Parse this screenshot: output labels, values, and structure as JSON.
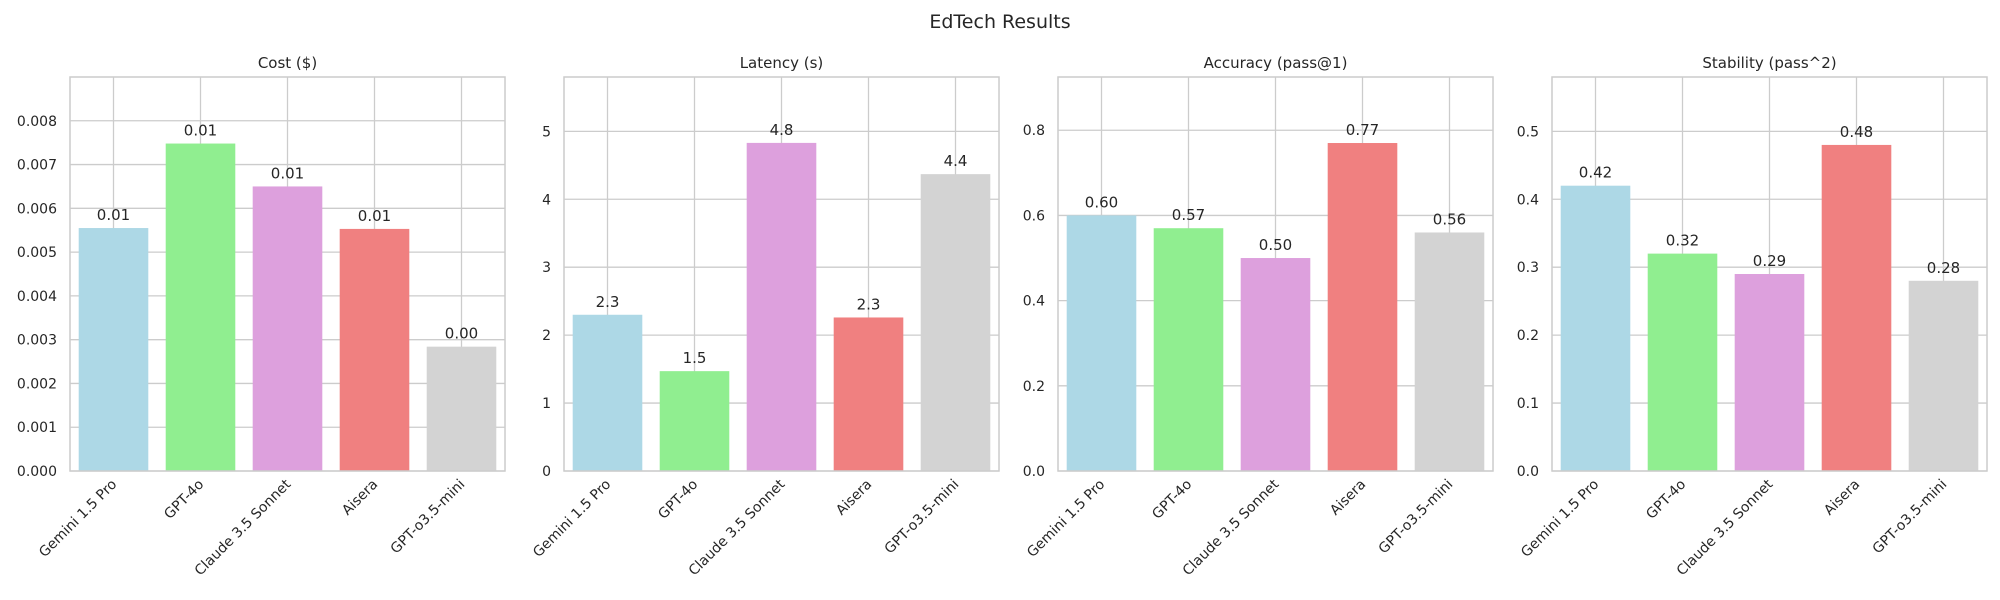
{
  "figure": {
    "title": "EdTech Results"
  },
  "chart_data": [
    {
      "type": "bar",
      "title": "Cost ($)",
      "categories": [
        "Gemini 1.5 Pro",
        "GPT-4o",
        "Claude 3.5 Sonnet",
        "Aisera",
        "GPT-o3.5-mini"
      ],
      "values": [
        0.00555,
        0.00748,
        0.0065,
        0.00553,
        0.00284
      ],
      "data_labels": [
        "0.01",
        "0.01",
        "0.01",
        "0.01",
        "0.00"
      ],
      "ylim": [
        0,
        0.009
      ],
      "yticks": [
        0,
        0.001,
        0.002,
        0.003,
        0.004,
        0.005,
        0.006,
        0.007,
        0.008
      ],
      "ytick_labels": [
        "0.000",
        "0.001",
        "0.002",
        "0.003",
        "0.004",
        "0.005",
        "0.006",
        "0.007",
        "0.008"
      ],
      "grid": true
    },
    {
      "type": "bar",
      "title": "Latency (s)",
      "categories": [
        "Gemini 1.5 Pro",
        "GPT-4o",
        "Claude 3.5 Sonnet",
        "Aisera",
        "GPT-o3.5-mini"
      ],
      "values": [
        2.3,
        1.47,
        4.83,
        2.26,
        4.37
      ],
      "data_labels": [
        "2.3",
        "1.5",
        "4.8",
        "2.3",
        "4.4"
      ],
      "ylim": [
        0,
        5.8
      ],
      "yticks": [
        0,
        1,
        2,
        3,
        4,
        5
      ],
      "ytick_labels": [
        "0",
        "1",
        "2",
        "3",
        "4",
        "5"
      ],
      "grid": true
    },
    {
      "type": "bar",
      "title": "Accuracy (pass@1)",
      "categories": [
        "Gemini 1.5 Pro",
        "GPT-4o",
        "Claude 3.5 Sonnet",
        "Aisera",
        "GPT-o3.5-mini"
      ],
      "values": [
        0.6,
        0.57,
        0.5,
        0.77,
        0.56
      ],
      "data_labels": [
        "0.60",
        "0.57",
        "0.50",
        "0.77",
        "0.56"
      ],
      "ylim": [
        0,
        0.925
      ],
      "yticks": [
        0,
        0.2,
        0.4,
        0.6,
        0.8
      ],
      "ytick_labels": [
        "0.0",
        "0.2",
        "0.4",
        "0.6",
        "0.8"
      ],
      "grid": true
    },
    {
      "type": "bar",
      "title": "Stability (pass^2)",
      "categories": [
        "Gemini 1.5 Pro",
        "GPT-4o",
        "Claude 3.5 Sonnet",
        "Aisera",
        "GPT-o3.5-mini"
      ],
      "values": [
        0.42,
        0.32,
        0.29,
        0.48,
        0.28
      ],
      "data_labels": [
        "0.42",
        "0.32",
        "0.29",
        "0.48",
        "0.28"
      ],
      "ylim": [
        0,
        0.58
      ],
      "yticks": [
        0,
        0.1,
        0.2,
        0.3,
        0.4,
        0.5
      ],
      "ytick_labels": [
        "0.0",
        "0.1",
        "0.2",
        "0.3",
        "0.4",
        "0.5"
      ],
      "grid": true
    }
  ],
  "colors": {
    "bars": [
      "#add8e6",
      "#90ee90",
      "#dda0dd",
      "#f08080",
      "#d3d3d3"
    ],
    "grid": "#cccccc",
    "spine": "#cccccc",
    "text": "#262626"
  }
}
